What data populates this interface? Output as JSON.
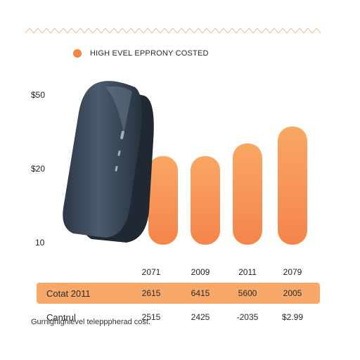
{
  "colors": {
    "accent": "#f4853c",
    "bar_top": "#f9a764",
    "bar_bottom": "#f5844a",
    "highlight_row": "#f8a868",
    "deco_line": "#f0c9a4",
    "phone_body": "#3a4a5a"
  },
  "legend": {
    "label": "HIGH EVEL EPPRONY COSTED",
    "icon": "orange-dot-icon"
  },
  "chart_data": {
    "type": "bar",
    "title": "",
    "xlabel": "",
    "ylabel": "",
    "categories": [
      "2071",
      "2009",
      "2011",
      "2079"
    ],
    "series": [
      {
        "name": "HIGH EVEL EPPRONY COSTED",
        "values": [
          31,
          31,
          34,
          38
        ]
      }
    ],
    "y_ticks": [
      "$50",
      "$20",
      "10"
    ],
    "ylim": [
      10,
      50
    ],
    "grid": false,
    "legend_position": "top-left"
  },
  "table": {
    "rows": [
      {
        "label": "Cotat 2011",
        "cells": [
          "2615",
          "6415",
          "5600",
          "2005"
        ],
        "highlight": true
      },
      {
        "label": "Cantrul",
        "cells": [
          "2515",
          "2425",
          "-2035",
          "$2.99"
        ],
        "highlight": false
      }
    ]
  },
  "illustration": {
    "icon": "mobile-phone-icon"
  },
  "caption": "Gurnighighlevel telepppherad cost."
}
